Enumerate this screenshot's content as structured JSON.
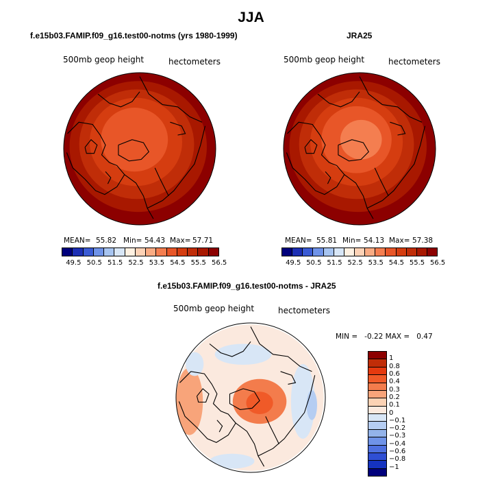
{
  "title": "JJA",
  "colors": {
    "levels_ramp": [
      "#00007c",
      "#1c2fb4",
      "#3a5bd4",
      "#6f93e8",
      "#a7c4f0",
      "#d8e6f6",
      "#fff1e2",
      "#fdd2b6",
      "#f9ab83",
      "#f47e50",
      "#e85628",
      "#d53d10",
      "#c02d08",
      "#a81800",
      "#8c0000"
    ],
    "diff_ramp": [
      "#8c0000",
      "#c02d08",
      "#e53a0f",
      "#f05a28",
      "#f37c4c",
      "#f8a47a",
      "#fcd2b4",
      "#fbe9de",
      "#d8e6f6",
      "#b5cdf2",
      "#93b3ea",
      "#6f93e8",
      "#4e70e0",
      "#2f4fd4",
      "#1533c0",
      "#00007c"
    ],
    "outline": "#000000"
  },
  "panels": [
    {
      "title": "f.e15b03.FAMIP.f09_g16.test00-notms (yrs 1980-1999)",
      "field_label": "500mb geop height",
      "units_label": "hectometers",
      "stats": {
        "mean_label": "MEAN=",
        "mean": "55.82",
        "min_label": "Min=",
        "min": "54.43",
        "max_label": "Max=",
        "max": "57.71"
      },
      "colorbar_ticks": [
        "49.5",
        "50.5",
        "51.5",
        "52.5",
        "53.5",
        "54.5",
        "55.5",
        "56.5"
      ]
    },
    {
      "title": "JRA25",
      "field_label": "500mb geop height",
      "units_label": "hectometers",
      "stats": {
        "mean_label": "MEAN=",
        "mean": "55.81",
        "min_label": "Min=",
        "min": "54.13",
        "max_label": "Max=",
        "max": "57.38"
      },
      "colorbar_ticks": [
        "49.5",
        "50.5",
        "51.5",
        "52.5",
        "53.5",
        "54.5",
        "55.5",
        "56.5"
      ]
    },
    {
      "title": "f.e15b03.FAMIP.f09_g16.test00-notms - JRA25",
      "field_label": "500mb geop height",
      "units_label": "hectometers",
      "stats_text": "MIN =   -0.22 MAX =   0.47",
      "colorbar_ticks": [
        "1",
        "0.8",
        "0.6",
        "0.4",
        "0.3",
        "0.2",
        "0.1",
        "0",
        "−0.1",
        "−0.2",
        "−0.3",
        "−0.4",
        "−0.6",
        "−0.8",
        "−1"
      ]
    }
  ],
  "chart_data": [
    {
      "type": "heatmap",
      "projection": "north polar stereographic",
      "title": "f.e15b03.FAMIP.f09_g16.test00-notms (yrs 1980-1999)",
      "variable": "500mb geop height",
      "units": "hectometers",
      "mean": 55.82,
      "min": 54.43,
      "max": 57.71,
      "contour_levels": [
        49.5,
        50.0,
        50.5,
        51.0,
        51.5,
        52.0,
        52.5,
        53.0,
        53.5,
        54.0,
        54.5,
        55.0,
        55.5,
        56.0,
        56.5
      ],
      "contour_rings": [
        {
          "level": 56.5,
          "r": 1.0,
          "dx": 0,
          "dy": 0
        },
        {
          "level": 56.0,
          "r": 0.86,
          "dx": -0.02,
          "dy": -0.03
        },
        {
          "level": 55.5,
          "r": 0.72,
          "dx": -0.04,
          "dy": -0.06
        },
        {
          "level": 55.0,
          "r": 0.58,
          "dx": -0.05,
          "dy": -0.09
        },
        {
          "level": 54.5,
          "r": 0.42,
          "dx": -0.07,
          "dy": -0.12
        }
      ]
    },
    {
      "type": "heatmap",
      "projection": "north polar stereographic",
      "title": "JRA25",
      "variable": "500mb geop height",
      "units": "hectometers",
      "mean": 55.81,
      "min": 54.13,
      "max": 57.38,
      "contour_levels": [
        49.5,
        50.0,
        50.5,
        51.0,
        51.5,
        52.0,
        52.5,
        53.0,
        53.5,
        54.0,
        54.5,
        55.0,
        55.5,
        56.0,
        56.5
      ],
      "contour_rings": [
        {
          "level": 56.5,
          "r": 1.0,
          "dx": 0,
          "dy": 0
        },
        {
          "level": 56.0,
          "r": 0.86,
          "dx": -0.02,
          "dy": -0.03
        },
        {
          "level": 55.5,
          "r": 0.72,
          "dx": -0.04,
          "dy": -0.06
        },
        {
          "level": 55.0,
          "r": 0.58,
          "dx": -0.04,
          "dy": -0.09
        },
        {
          "level": 54.5,
          "r": 0.44,
          "dx": -0.04,
          "dy": -0.12
        },
        {
          "level": 54.0,
          "r": 0.26,
          "dx": 0.02,
          "dy": -0.12
        }
      ]
    },
    {
      "type": "heatmap",
      "projection": "north polar stereographic",
      "title": "f.e15b03.FAMIP.f09_g16.test00-notms - JRA25",
      "variable": "500mb geop height",
      "units": "hectometers",
      "min": -0.22,
      "max": 0.47,
      "contour_levels": [
        -1,
        -0.8,
        -0.6,
        -0.4,
        -0.3,
        -0.2,
        -0.1,
        0,
        0.1,
        0.2,
        0.3,
        0.4,
        0.6,
        0.8,
        1
      ],
      "anomalies": [
        {
          "value": 0.05,
          "cx": 0.0,
          "cy": 0.0,
          "rx": 0.98,
          "ry": 0.98
        },
        {
          "value": 0.2,
          "cx": -0.82,
          "cy": 0.05,
          "rx": 0.18,
          "ry": 0.45
        },
        {
          "value": 0.3,
          "cx": 0.12,
          "cy": 0.05,
          "rx": 0.36,
          "ry": 0.3
        },
        {
          "value": 0.4,
          "cx": 0.12,
          "cy": 0.07,
          "rx": 0.18,
          "ry": 0.15
        },
        {
          "value": -0.1,
          "cx": -0.1,
          "cy": -0.58,
          "rx": 0.38,
          "ry": 0.14
        },
        {
          "value": -0.1,
          "cx": 0.7,
          "cy": 0.05,
          "rx": 0.16,
          "ry": 0.5
        },
        {
          "value": -0.2,
          "cx": 0.82,
          "cy": 0.1,
          "rx": 0.07,
          "ry": 0.2
        },
        {
          "value": -0.1,
          "cx": -0.25,
          "cy": 0.85,
          "rx": 0.3,
          "ry": 0.1
        },
        {
          "value": -0.1,
          "cx": -0.75,
          "cy": -0.45,
          "rx": 0.12,
          "ry": 0.16
        }
      ]
    }
  ]
}
